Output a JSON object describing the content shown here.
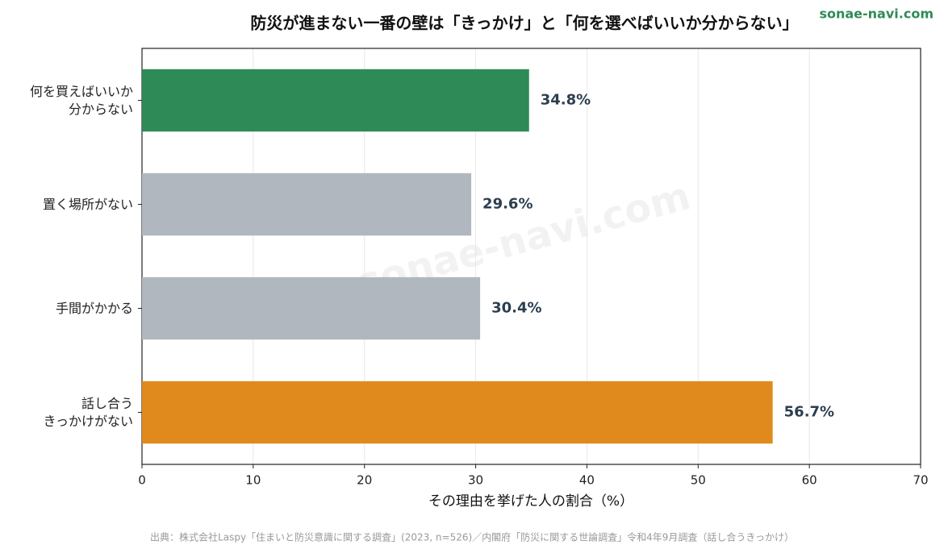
{
  "chart_data": {
    "type": "barh",
    "title": "防災が進まない一番の壁は「きっかけ」と「何を選べばいいか分からない」",
    "watermark": "sonae-navi.com",
    "categories": [
      "何を買えばいいか\n分からない",
      "置く場所がない",
      "手間がかかる",
      "話し合う\nきっかけがない"
    ],
    "values": [
      34.8,
      29.6,
      30.4,
      56.7
    ],
    "value_labels": [
      "34.8%",
      "29.6%",
      "30.4%",
      "56.7%"
    ],
    "colors": [
      "#2e8b57",
      "#b0b7bf",
      "#b0b7bf",
      "#e08a1e"
    ],
    "xlabel": "その理由を挙げた人の割合（%）",
    "xlim": [
      0,
      70
    ],
    "xticks": [
      0,
      10,
      20,
      30,
      40,
      50,
      60,
      70
    ],
    "grid": true,
    "source": "出典：株式会社Laspy「住まいと防災意識に関する調査」(2023, n=526)／内閣府「防災に関する世論調査」令和4年9月調査（話し合うきっかけ）"
  }
}
